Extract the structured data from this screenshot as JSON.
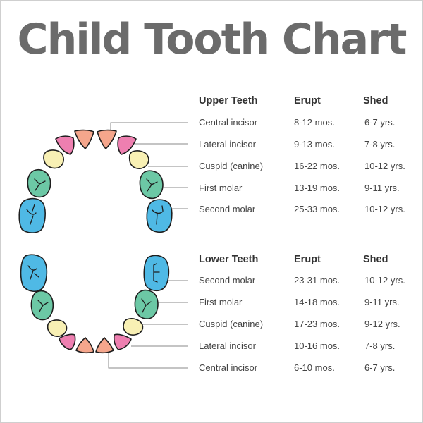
{
  "title": "Child Tooth Chart",
  "colors": {
    "incisor_central": "#F5A68C",
    "incisor_lateral": "#EE7FB0",
    "canine": "#F8F0B4",
    "first_molar": "#6CC8A5",
    "second_molar": "#4FB9E5",
    "title_text": "#6B6B6B",
    "leader_line": "#8A8A8A"
  },
  "upper": {
    "header": {
      "name": "Upper Teeth",
      "erupt": "Erupt",
      "shed": "Shed"
    },
    "rows": [
      {
        "name": "Central incisor",
        "erupt": "8-12 mos.",
        "shed": "6-7 yrs."
      },
      {
        "name": "Lateral incisor",
        "erupt": "9-13 mos.",
        "shed": "7-8 yrs."
      },
      {
        "name": "Cuspid (canine)",
        "erupt": "16-22 mos.",
        "shed": "10-12 yrs."
      },
      {
        "name": "First  molar",
        "erupt": "13-19 mos.",
        "shed": "9-11 yrs."
      },
      {
        "name": "Second molar",
        "erupt": "25-33 mos.",
        "shed": "10-12 yrs."
      }
    ]
  },
  "lower": {
    "header": {
      "name": "Lower Teeth",
      "erupt": "Erupt",
      "shed": "Shed"
    },
    "rows": [
      {
        "name": "Second molar",
        "erupt": "23-31 mos.",
        "shed": "10-12 yrs."
      },
      {
        "name": "First  molar",
        "erupt": "14-18 mos.",
        "shed": "9-11 yrs."
      },
      {
        "name": "Cuspid (canine)",
        "erupt": "17-23 mos.",
        "shed": "9-12 yrs."
      },
      {
        "name": "Lateral incisor",
        "erupt": "10-16 mos.",
        "shed": "7-8 yrs."
      },
      {
        "name": "Central incisor",
        "erupt": "6-10 mos.",
        "shed": "6-7 yrs."
      }
    ]
  }
}
